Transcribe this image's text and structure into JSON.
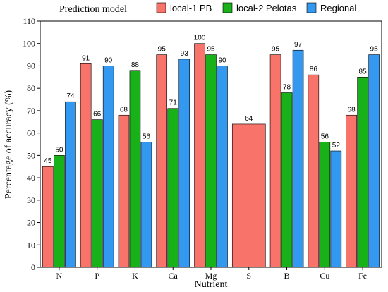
{
  "colors": {
    "local_1_pb": "#f8746b",
    "local_2_pelotas": "#19b119",
    "regional": "#3399f0"
  },
  "chart_data": {
    "type": "bar",
    "legend_title": "Prediction model",
    "legend_position": "top",
    "xlabel": "Nutrient",
    "ylabel": "Percentage of accuracy (%)",
    "ylim": [
      0,
      110
    ],
    "yticks": [
      0,
      10,
      20,
      30,
      40,
      50,
      60,
      70,
      80,
      90,
      100,
      110
    ],
    "grid": false,
    "categories": [
      "N",
      "P",
      "K",
      "Ca",
      "Mg",
      "S",
      "B",
      "Cu",
      "Fe"
    ],
    "series": [
      {
        "name": "local-1 PB",
        "color_key": "local_1_pb",
        "values": [
          45,
          91,
          68,
          95,
          100,
          64,
          95,
          86,
          68
        ]
      },
      {
        "name": "local-2 Pelotas",
        "color_key": "local_2_pelotas",
        "values": [
          50,
          66,
          88,
          71,
          95,
          null,
          78,
          56,
          85
        ]
      },
      {
        "name": "Regional",
        "color_key": "regional",
        "values": [
          74,
          90,
          56,
          93,
          90,
          null,
          97,
          52,
          95
        ]
      }
    ]
  }
}
